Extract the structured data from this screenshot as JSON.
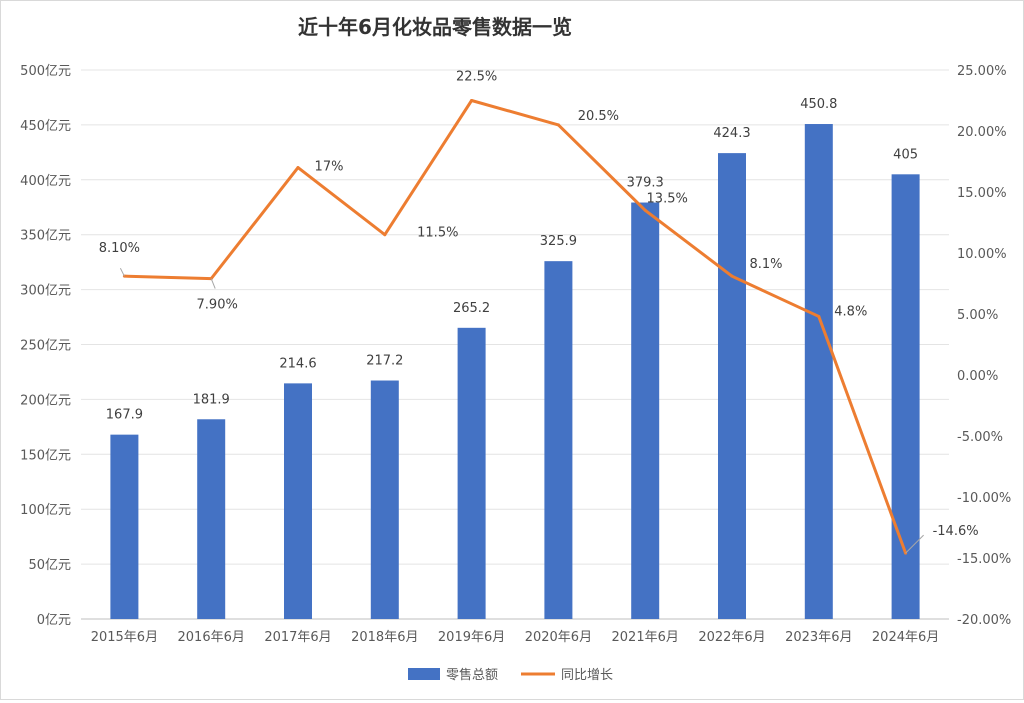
{
  "chart_data": {
    "type": "bar+line",
    "title": "近十年6月化妆品零售数据一览",
    "categories": [
      "2015年6月",
      "2016年6月",
      "2017年6月",
      "2018年6月",
      "2019年6月",
      "2020年6月",
      "2021年6月",
      "2022年6月",
      "2023年6月",
      "2024年6月"
    ],
    "series": [
      {
        "name": "零售总额",
        "type": "bar",
        "axis": "left",
        "color": "#4472c4",
        "values": [
          167.9,
          181.9,
          214.6,
          217.2,
          265.2,
          325.9,
          379.3,
          424.3,
          450.8,
          405
        ],
        "labels": [
          "167.9",
          "181.9",
          "214.6",
          "217.2",
          "265.2",
          "325.9",
          "379.3",
          "424.3",
          "450.8",
          "405"
        ]
      },
      {
        "name": "同比增长",
        "type": "line",
        "axis": "right",
        "color": "#ed7d31",
        "values": [
          8.1,
          7.9,
          17,
          11.5,
          22.5,
          20.5,
          13.5,
          8.1,
          4.8,
          -14.6
        ],
        "labels": [
          "8.10%",
          "7.90%",
          "17%",
          "11.5%",
          "22.5%",
          "20.5%",
          "13.5%",
          "8.1%",
          "4.8%",
          "-14.6%"
        ]
      }
    ],
    "left_axis": {
      "range": [
        0,
        500
      ],
      "ticks": [
        "0亿元",
        "50亿元",
        "100亿元",
        "150亿元",
        "200亿元",
        "250亿元",
        "300亿元",
        "350亿元",
        "400亿元",
        "450亿元",
        "500亿元"
      ]
    },
    "right_axis": {
      "range": [
        -20,
        25
      ],
      "ticks": [
        "-20.00%",
        "-15.00%",
        "-10.00%",
        "-5.00%",
        "0.00%",
        "5.00%",
        "10.00%",
        "15.00%",
        "20.00%",
        "25.00%"
      ]
    },
    "grid": true,
    "legend": "bottom"
  }
}
